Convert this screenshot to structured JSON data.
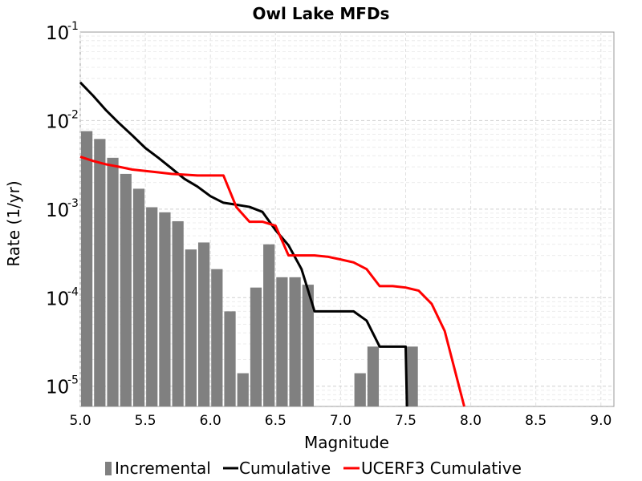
{
  "chart_data": {
    "type": "bar",
    "title": "Owl Lake MFDs",
    "xlabel": "Magnitude",
    "ylabel": "Rate (1/yr)",
    "xlim": [
      5.0,
      9.1
    ],
    "ylim": [
      5.9e-06,
      0.1
    ],
    "yscale": "log",
    "grid": true,
    "legend_position": "bottom",
    "x_ticks": [
      "5.0",
      "5.5",
      "6.0",
      "6.5",
      "7.0",
      "7.5",
      "8.0",
      "8.5",
      "9.0"
    ],
    "y_ticks": [
      {
        "value": 1e-05,
        "base": "10",
        "exp": "-5"
      },
      {
        "value": 0.0001,
        "base": "10",
        "exp": "-4"
      },
      {
        "value": 0.001,
        "base": "10",
        "exp": "-3"
      },
      {
        "value": 0.01,
        "base": "10",
        "exp": "-2"
      },
      {
        "value": 0.1,
        "base": "10",
        "exp": "-1"
      }
    ],
    "incremental": {
      "name": "Incremental",
      "color": "#808080",
      "bin_width": 0.1,
      "x": [
        5.05,
        5.15,
        5.25,
        5.35,
        5.45,
        5.55,
        5.65,
        5.75,
        5.85,
        5.95,
        6.05,
        6.15,
        6.25,
        6.35,
        6.45,
        6.55,
        6.65,
        6.75,
        7.15,
        7.25,
        7.55
      ],
      "values": [
        0.0076,
        0.0062,
        0.0038,
        0.0025,
        0.0017,
        0.00105,
        0.00092,
        0.00073,
        0.00035,
        0.00042,
        0.00021,
        7e-05,
        1.4e-05,
        0.00013,
        0.0004,
        0.00017,
        0.00017,
        0.00014,
        1.4e-05,
        2.8e-05,
        2.8e-05
      ]
    },
    "series": [
      {
        "name": "Cumulative",
        "color": "#000000",
        "x": [
          5.0,
          5.1,
          5.2,
          5.3,
          5.4,
          5.5,
          5.6,
          5.7,
          5.8,
          5.9,
          6.0,
          6.1,
          6.2,
          6.3,
          6.4,
          6.5,
          6.6,
          6.7,
          6.8,
          6.9,
          7.0,
          7.1,
          7.2,
          7.3,
          7.4,
          7.5,
          7.51
        ],
        "values": [
          0.027,
          0.019,
          0.013,
          0.0093,
          0.0068,
          0.0049,
          0.0038,
          0.0029,
          0.0022,
          0.0018,
          0.0014,
          0.00118,
          0.00112,
          0.00106,
          0.00093,
          0.00058,
          0.00039,
          0.00021,
          7e-05,
          7e-05,
          7e-05,
          7e-05,
          5.5e-05,
          2.8e-05,
          2.8e-05,
          2.8e-05,
          5.9e-06
        ]
      },
      {
        "name": "UCERF3 Cumulative",
        "color": "#ff0000",
        "x": [
          5.0,
          5.1,
          5.2,
          5.3,
          5.4,
          5.5,
          5.6,
          5.7,
          5.8,
          5.9,
          6.0,
          6.1,
          6.2,
          6.3,
          6.4,
          6.5,
          6.6,
          6.7,
          6.8,
          6.9,
          7.0,
          7.1,
          7.2,
          7.3,
          7.4,
          7.5,
          7.6,
          7.7,
          7.8,
          7.95
        ],
        "values": [
          0.0039,
          0.0035,
          0.0032,
          0.003,
          0.0028,
          0.0027,
          0.0026,
          0.0025,
          0.00245,
          0.0024,
          0.0024,
          0.0024,
          0.00105,
          0.00072,
          0.00072,
          0.00065,
          0.0003,
          0.0003,
          0.0003,
          0.00029,
          0.00027,
          0.00025,
          0.00021,
          0.000135,
          0.000135,
          0.00013,
          0.00012,
          8.5e-05,
          4.2e-05,
          5.9e-06
        ]
      }
    ]
  }
}
